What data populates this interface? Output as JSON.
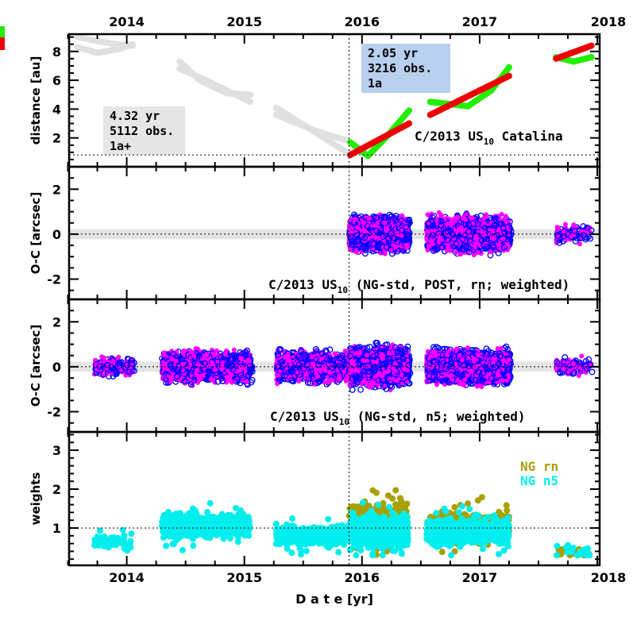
{
  "chart_data": [
    {
      "type": "scatter",
      "panel": "distance",
      "ylabel": "distance [au]",
      "ylim": [
        0,
        9.2
      ],
      "yticks": [
        2,
        4,
        6,
        8
      ],
      "xlim": [
        2013.51,
        2018.02
      ],
      "xticks": [
        "2014",
        "2015",
        "2016",
        "2017",
        "2018"
      ],
      "hline": 0.82,
      "vline": 2015.89,
      "title": "C/2013 US",
      "title_sub": "10",
      "title_suffix": " Catalina",
      "box_left": {
        "lines": [
          "4.32 yr",
          "5112 obs.",
          "1a+"
        ],
        "color": "#e6e6e6"
      },
      "box_right": {
        "lines": [
          "2.05 yr",
          "3216 obs.",
          "1a"
        ],
        "color": "#b8cfee"
      },
      "tracks": [
        {
          "color": "#e0e0e0",
          "points": [
            [
              2013.58,
              9.0
            ],
            [
              2013.9,
              8.5
            ],
            [
              2014.05,
              8.4
            ]
          ]
        },
        {
          "color": "#e0e0e0",
          "points": [
            [
              2013.58,
              8.3
            ],
            [
              2013.75,
              7.9
            ],
            [
              2013.95,
              8.2
            ],
            [
              2014.05,
              8.5
            ]
          ]
        },
        {
          "color": "#e0e0e0",
          "points": [
            [
              2014.45,
              7.3
            ],
            [
              2014.62,
              6.0
            ],
            [
              2014.85,
              5.1
            ],
            [
              2015.05,
              5.0
            ]
          ]
        },
        {
          "color": "#e0e0e0",
          "points": [
            [
              2014.45,
              6.8
            ],
            [
              2014.62,
              6.2
            ],
            [
              2014.85,
              5.3
            ],
            [
              2015.05,
              4.5
            ]
          ]
        },
        {
          "color": "#e0e0e0",
          "points": [
            [
              2015.27,
              4.1
            ],
            [
              2015.6,
              2.4
            ],
            [
              2015.88,
              0.95
            ]
          ]
        },
        {
          "color": "#e0e0e0",
          "points": [
            [
              2015.27,
              3.6
            ],
            [
              2015.6,
              2.5
            ],
            [
              2015.88,
              1.8
            ]
          ]
        },
        {
          "color": "#22ee00",
          "points": [
            [
              2015.9,
              1.7
            ],
            [
              2016.05,
              0.75
            ],
            [
              2016.2,
              2.0
            ],
            [
              2016.4,
              3.9
            ]
          ]
        },
        {
          "color": "#22ee00",
          "points": [
            [
              2016.58,
              4.5
            ],
            [
              2016.9,
              4.2
            ],
            [
              2017.1,
              5.3
            ],
            [
              2017.25,
              6.9
            ]
          ]
        },
        {
          "color": "#22ee00",
          "points": [
            [
              2017.65,
              7.6
            ],
            [
              2017.8,
              7.3
            ],
            [
              2017.95,
              7.6
            ]
          ]
        },
        {
          "color": "#ee0000",
          "points": [
            [
              2015.9,
              0.82
            ],
            [
              2016.4,
              3.0
            ]
          ]
        },
        {
          "color": "#ee0000",
          "points": [
            [
              2016.58,
              3.6
            ],
            [
              2017.25,
              6.3
            ]
          ]
        },
        {
          "color": "#ee0000",
          "points": [
            [
              2017.65,
              7.5
            ],
            [
              2017.95,
              8.4
            ]
          ]
        }
      ]
    },
    {
      "type": "scatter",
      "panel": "oc-post",
      "ylabel": "O-C [arcsec]",
      "ylim": [
        -2.9,
        3.0
      ],
      "yticks": [
        -2,
        0,
        2
      ],
      "title": "C/2013 US",
      "title_sub": "10",
      "title_suffix": " (NG-std, POST, rn; weighted)",
      "clouds": [
        {
          "from": 2015.89,
          "to": 2016.39,
          "spread": 1.0,
          "n": 1100
        },
        {
          "from": 2016.55,
          "to": 2017.25,
          "spread": 1.0,
          "n": 1300
        },
        {
          "from": 2017.65,
          "to": 2017.95,
          "spread": 0.55,
          "n": 60
        }
      ],
      "series_colors": {
        "filled": "#ff00ff",
        "open": "#0000ff"
      }
    },
    {
      "type": "scatter",
      "panel": "oc-n5",
      "ylabel": "O-C [arcsec]",
      "ylim": [
        -2.9,
        3.0
      ],
      "yticks": [
        -2,
        0,
        2
      ],
      "title": "C/2013 US",
      "title_sub": "10",
      "title_suffix": " (NG-std, n5; weighted)",
      "clouds": [
        {
          "from": 2013.72,
          "to": 2014.05,
          "spread": 0.6,
          "n": 90
        },
        {
          "from": 2014.3,
          "to": 2015.05,
          "spread": 0.9,
          "n": 900
        },
        {
          "from": 2015.27,
          "to": 2015.88,
          "spread": 0.9,
          "n": 700
        },
        {
          "from": 2015.89,
          "to": 2016.39,
          "spread": 1.1,
          "n": 1100
        },
        {
          "from": 2016.55,
          "to": 2017.25,
          "spread": 1.0,
          "n": 1300
        },
        {
          "from": 2017.65,
          "to": 2017.95,
          "spread": 0.55,
          "n": 60
        }
      ],
      "series_colors": {
        "filled": "#ff00ff",
        "open": "#0000ff"
      }
    },
    {
      "type": "scatter",
      "panel": "weights",
      "ylabel": "weights",
      "ylim": [
        0.04,
        3.47
      ],
      "yticks": [
        1,
        2,
        3
      ],
      "hline": 1.0,
      "xlabel": "D a t e [yr]",
      "series": [
        {
          "name": "NG rn",
          "color": "#a8a000",
          "clouds": [
            {
              "from": 2015.89,
              "to": 2016.39,
              "center": 1.1,
              "spread": 0.7,
              "n": 500
            },
            {
              "from": 2016.55,
              "to": 2017.25,
              "center": 1.0,
              "spread": 0.5,
              "n": 500
            },
            {
              "from": 2017.65,
              "to": 2017.95,
              "center": 0.4,
              "spread": 0.2,
              "n": 20
            }
          ]
        },
        {
          "name": "NG n5",
          "color": "#00eeee",
          "clouds": [
            {
              "from": 2013.72,
              "to": 2014.05,
              "center": 0.65,
              "spread": 0.3,
              "n": 60
            },
            {
              "from": 2014.3,
              "to": 2015.05,
              "center": 1.05,
              "spread": 0.4,
              "n": 600
            },
            {
              "from": 2015.27,
              "to": 2015.88,
              "center": 0.8,
              "spread": 0.35,
              "n": 400
            },
            {
              "from": 2015.89,
              "to": 2016.39,
              "center": 0.9,
              "spread": 0.5,
              "n": 900
            },
            {
              "from": 2016.55,
              "to": 2017.25,
              "center": 0.9,
              "spread": 0.4,
              "n": 900
            },
            {
              "from": 2017.65,
              "to": 2017.95,
              "center": 0.4,
              "spread": 0.2,
              "n": 20
            }
          ]
        }
      ]
    }
  ]
}
